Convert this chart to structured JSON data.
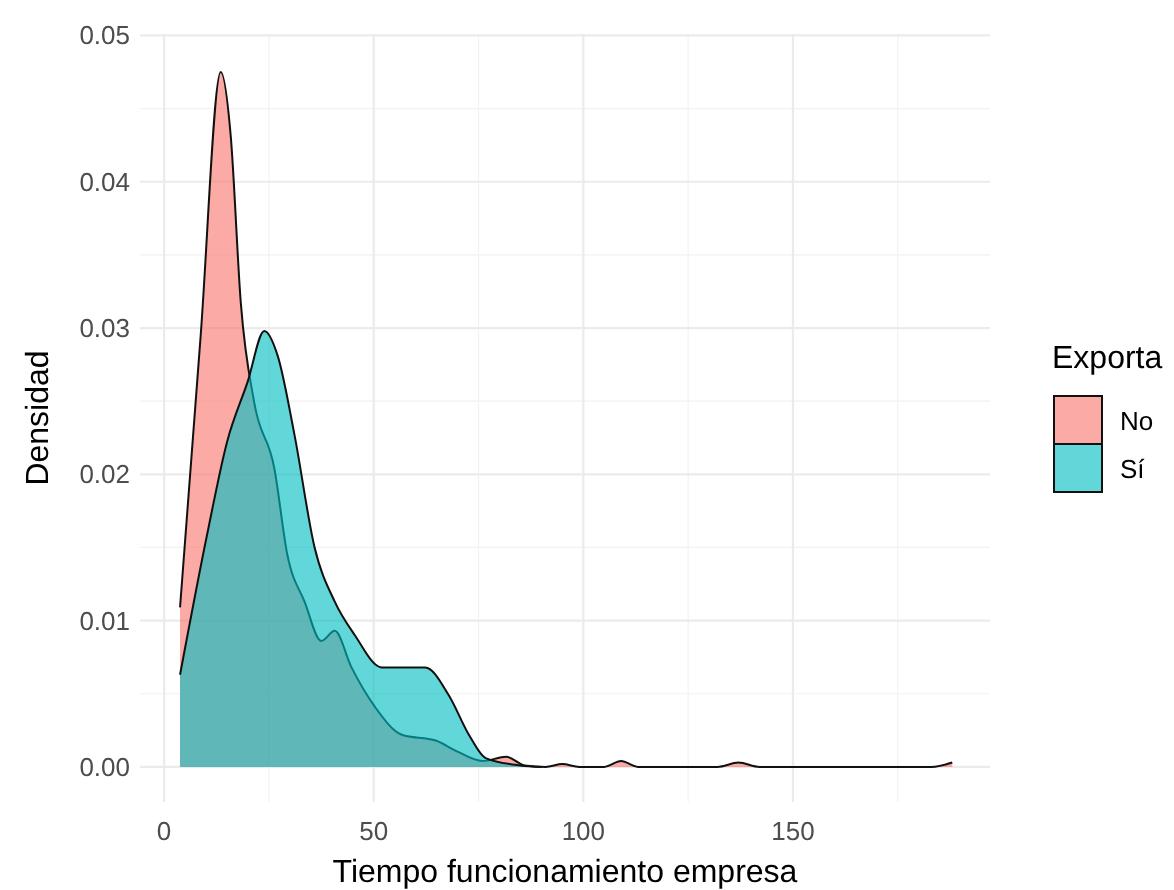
{
  "chart_data": {
    "type": "area",
    "xlabel": "Tiempo funcionamiento empresa",
    "ylabel": "Densidad",
    "legend_title": "Exporta",
    "xlim": [
      -5.75,
      197
    ],
    "ylim": [
      -0.0024,
      0.0501
    ],
    "xticks": [
      0,
      50,
      100,
      150
    ],
    "yticks": [
      {
        "value": 0,
        "label": "0.00"
      },
      {
        "value": 0.01,
        "label": "0.01"
      },
      {
        "value": 0.02,
        "label": "0.02"
      },
      {
        "value": 0.03,
        "label": "0.03"
      },
      {
        "value": 0.04,
        "label": "0.04"
      },
      {
        "value": 0.05,
        "label": "0.05"
      }
    ],
    "grid": true,
    "legend": "right",
    "series": [
      {
        "name": "No",
        "color": "#F8766D",
        "x": [
          3.8,
          8.7,
          13.5,
          15.9,
          18.3,
          21.5,
          26.3,
          29.4,
          33.5,
          37.5,
          40.7,
          44.7,
          50.3,
          56.7,
          64.8,
          69.6,
          76,
          81.6,
          86,
          91,
          95,
          99,
          105,
          109,
          113,
          132,
          137,
          142,
          183,
          188
        ],
        "values": [
          0.0109,
          0.0294,
          0.0475,
          0.0431,
          0.0317,
          0.0249,
          0.0204,
          0.0145,
          0.0113,
          0.0086,
          0.0093,
          0.0068,
          0.0041,
          0.0022,
          0.0018,
          0.0011,
          0.0004,
          0.0007,
          0.0001,
          0,
          0.0002,
          0,
          0,
          0.0004,
          0,
          0,
          0.0003,
          0,
          0,
          0.0003
        ]
      },
      {
        "name": "Sí",
        "color": "#00BFC4",
        "x": [
          3.8,
          10.2,
          15,
          19.9,
          23.9,
          27.1,
          31.1,
          35.9,
          40.7,
          45.5,
          51.9,
          58.2,
          62.3,
          67.9,
          72.7,
          76.7,
          85,
          90
        ],
        "values": [
          0.0063,
          0.0158,
          0.0222,
          0.0263,
          0.0298,
          0.0281,
          0.0227,
          0.015,
          0.0113,
          0.009,
          0.0068,
          0.0068,
          0.0068,
          0.0049,
          0.0022,
          0.0006,
          0.0001,
          0
        ]
      }
    ]
  }
}
